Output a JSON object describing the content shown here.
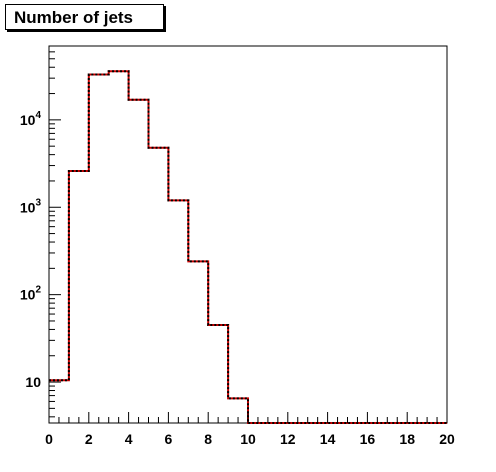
{
  "chart_data": {
    "type": "step-histogram",
    "title": "Number of jets",
    "xlabel": "",
    "ylabel": "",
    "xlim": [
      0,
      20
    ],
    "ylim": [
      3.4,
      70000
    ],
    "yscale": "log",
    "grid": false,
    "bin_edges": [
      0,
      1,
      2,
      3,
      4,
      5,
      6,
      7,
      8,
      9,
      10,
      11,
      12,
      13,
      14,
      15,
      16,
      17,
      18,
      19,
      20
    ],
    "x_ticks": [
      0,
      2,
      4,
      6,
      8,
      10,
      12,
      14,
      16,
      18,
      20
    ],
    "x_tick_labels": [
      "0",
      "2",
      "4",
      "6",
      "8",
      "10",
      "12",
      "14",
      "16",
      "18",
      "20"
    ],
    "y_ticks": [
      {
        "value": 10,
        "base": "10",
        "exp": ""
      },
      {
        "value": 100,
        "base": "10",
        "exp": "2"
      },
      {
        "value": 1000,
        "base": "10",
        "exp": "3"
      },
      {
        "value": 10000,
        "base": "10",
        "exp": "4"
      }
    ],
    "series": [
      {
        "values": [
          10.5,
          2600,
          33000,
          36000,
          17000,
          4800,
          1200,
          240,
          45,
          6.5,
          0,
          0,
          0,
          0,
          0,
          0,
          0,
          0,
          0,
          0
        ],
        "color": "#cc0000",
        "style": "solid"
      },
      {
        "values": [
          10.5,
          2600,
          33000,
          36000,
          17000,
          4800,
          1200,
          240,
          45,
          6.5,
          0,
          0,
          0,
          0,
          0,
          0,
          0,
          0,
          0,
          0
        ],
        "color": "#000000",
        "style": "dotted"
      }
    ]
  }
}
